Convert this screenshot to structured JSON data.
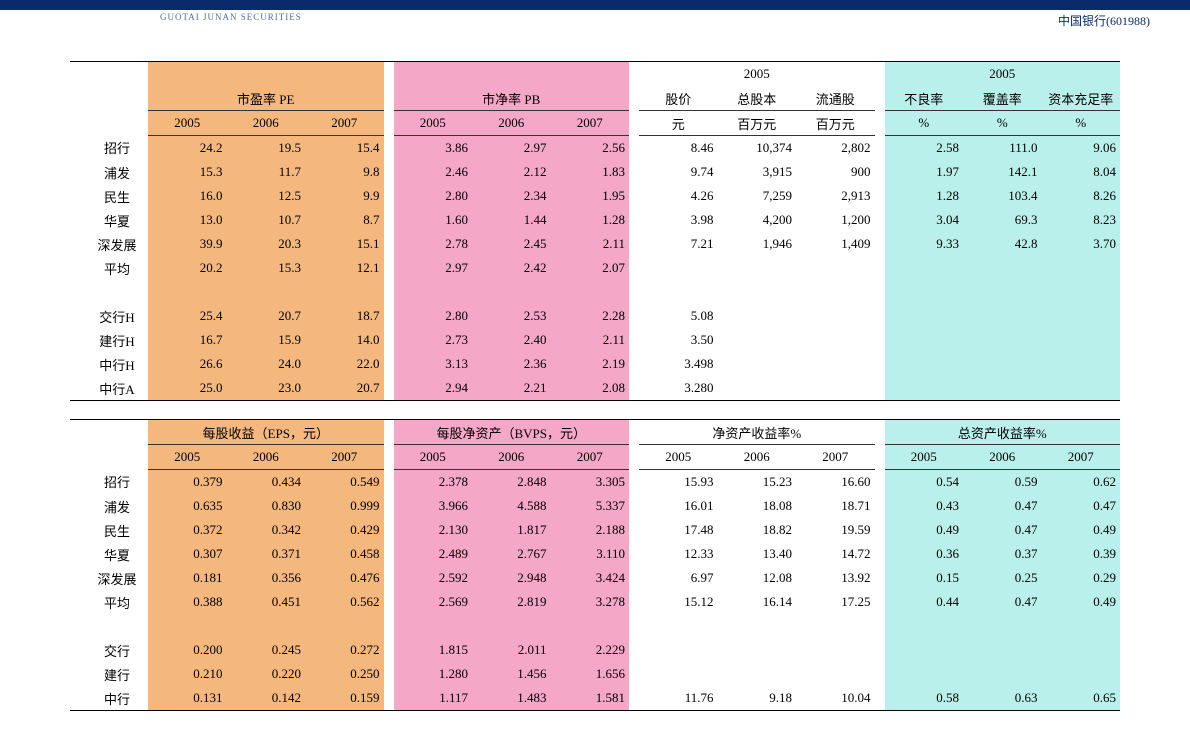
{
  "header": {
    "company_label": "中国银行",
    "stock_code": "(601988)",
    "logo_text": "GUOTAI JUNAN SECURITIES"
  },
  "colors": {
    "orange": "#f4b77e",
    "pink": "#f4a7c6",
    "cyan": "#baf0ec",
    "navy": "#0a2a6b",
    "rule": "#333333"
  },
  "table1": {
    "sections": {
      "pe": {
        "title": "市盈率 PE",
        "years": [
          "2005",
          "2006",
          "2007"
        ]
      },
      "pb": {
        "title": "市净率 PB",
        "years": [
          "2005",
          "2006",
          "2007"
        ]
      },
      "price": {
        "year": "2005",
        "cols": [
          "股价",
          "总股本",
          "流通股"
        ],
        "units": [
          "元",
          "百万元",
          "百万元"
        ]
      },
      "quality": {
        "year": "2005",
        "cols": [
          "不良率",
          "覆盖率",
          "资本充足率"
        ],
        "units": [
          "%",
          "%",
          "%"
        ]
      }
    },
    "rows": [
      {
        "label": "招行",
        "pe": [
          "24.2",
          "19.5",
          "15.4"
        ],
        "pb": [
          "3.86",
          "2.97",
          "2.56"
        ],
        "price": [
          "8.46",
          "10,374",
          "2,802"
        ],
        "q": [
          "2.58",
          "111.0",
          "9.06"
        ]
      },
      {
        "label": "浦发",
        "pe": [
          "15.3",
          "11.7",
          "9.8"
        ],
        "pb": [
          "2.46",
          "2.12",
          "1.83"
        ],
        "price": [
          "9.74",
          "3,915",
          "900"
        ],
        "q": [
          "1.97",
          "142.1",
          "8.04"
        ]
      },
      {
        "label": "民生",
        "pe": [
          "16.0",
          "12.5",
          "9.9"
        ],
        "pb": [
          "2.80",
          "2.34",
          "1.95"
        ],
        "price": [
          "4.26",
          "7,259",
          "2,913"
        ],
        "q": [
          "1.28",
          "103.4",
          "8.26"
        ]
      },
      {
        "label": "华夏",
        "pe": [
          "13.0",
          "10.7",
          "8.7"
        ],
        "pb": [
          "1.60",
          "1.44",
          "1.28"
        ],
        "price": [
          "3.98",
          "4,200",
          "1,200"
        ],
        "q": [
          "3.04",
          "69.3",
          "8.23"
        ]
      },
      {
        "label": "深发展",
        "pe": [
          "39.9",
          "20.3",
          "15.1"
        ],
        "pb": [
          "2.78",
          "2.45",
          "2.11"
        ],
        "price": [
          "7.21",
          "1,946",
          "1,409"
        ],
        "q": [
          "9.33",
          "42.8",
          "3.70"
        ]
      },
      {
        "label": "平均",
        "pe": [
          "20.2",
          "15.3",
          "12.1"
        ],
        "pb": [
          "2.97",
          "2.42",
          "2.07"
        ],
        "price": [
          "",
          "",
          ""
        ],
        "q": [
          "",
          "",
          ""
        ]
      },
      {
        "label": "",
        "pe": [
          "",
          "",
          ""
        ],
        "pb": [
          "",
          "",
          ""
        ],
        "price": [
          "",
          "",
          ""
        ],
        "q": [
          "",
          "",
          ""
        ]
      },
      {
        "label": "交行H",
        "pe": [
          "25.4",
          "20.7",
          "18.7"
        ],
        "pb": [
          "2.80",
          "2.53",
          "2.28"
        ],
        "price": [
          "5.08",
          "",
          ""
        ],
        "q": [
          "",
          "",
          ""
        ]
      },
      {
        "label": "建行H",
        "pe": [
          "16.7",
          "15.9",
          "14.0"
        ],
        "pb": [
          "2.73",
          "2.40",
          "2.11"
        ],
        "price": [
          "3.50",
          "",
          ""
        ],
        "q": [
          "",
          "",
          ""
        ]
      },
      {
        "label": "中行H",
        "pe": [
          "26.6",
          "24.0",
          "22.0"
        ],
        "pb": [
          "3.13",
          "2.36",
          "2.19"
        ],
        "price": [
          "3.498",
          "",
          ""
        ],
        "q": [
          "",
          "",
          ""
        ]
      },
      {
        "label": "中行A",
        "pe": [
          "25.0",
          "23.0",
          "20.7"
        ],
        "pb": [
          "2.94",
          "2.21",
          "2.08"
        ],
        "price": [
          "3.280",
          "",
          ""
        ],
        "q": [
          "",
          "",
          ""
        ]
      }
    ]
  },
  "table2": {
    "sections": {
      "eps": {
        "title": "每股收益（EPS，元）",
        "years": [
          "2005",
          "2006",
          "2007"
        ]
      },
      "bvps": {
        "title": "每股净资产（BVPS，元）",
        "years": [
          "2005",
          "2006",
          "2007"
        ]
      },
      "roe": {
        "title": "净资产收益率%",
        "years": [
          "2005",
          "2006",
          "2007"
        ]
      },
      "roa": {
        "title": "总资产收益率%",
        "years": [
          "2005",
          "2006",
          "2007"
        ]
      }
    },
    "rows": [
      {
        "label": "招行",
        "eps": [
          "0.379",
          "0.434",
          "0.549"
        ],
        "bvps": [
          "2.378",
          "2.848",
          "3.305"
        ],
        "roe": [
          "15.93",
          "15.23",
          "16.60"
        ],
        "roa": [
          "0.54",
          "0.59",
          "0.62"
        ]
      },
      {
        "label": "浦发",
        "eps": [
          "0.635",
          "0.830",
          "0.999"
        ],
        "bvps": [
          "3.966",
          "4.588",
          "5.337"
        ],
        "roe": [
          "16.01",
          "18.08",
          "18.71"
        ],
        "roa": [
          "0.43",
          "0.47",
          "0.47"
        ]
      },
      {
        "label": "民生",
        "eps": [
          "0.372",
          "0.342",
          "0.429"
        ],
        "bvps": [
          "2.130",
          "1.817",
          "2.188"
        ],
        "roe": [
          "17.48",
          "18.82",
          "19.59"
        ],
        "roa": [
          "0.49",
          "0.47",
          "0.49"
        ]
      },
      {
        "label": "华夏",
        "eps": [
          "0.307",
          "0.371",
          "0.458"
        ],
        "bvps": [
          "2.489",
          "2.767",
          "3.110"
        ],
        "roe": [
          "12.33",
          "13.40",
          "14.72"
        ],
        "roa": [
          "0.36",
          "0.37",
          "0.39"
        ]
      },
      {
        "label": "深发展",
        "eps": [
          "0.181",
          "0.356",
          "0.476"
        ],
        "bvps": [
          "2.592",
          "2.948",
          "3.424"
        ],
        "roe": [
          "6.97",
          "12.08",
          "13.92"
        ],
        "roa": [
          "0.15",
          "0.25",
          "0.29"
        ]
      },
      {
        "label": "平均",
        "eps": [
          "0.388",
          "0.451",
          "0.562"
        ],
        "bvps": [
          "2.569",
          "2.819",
          "3.278"
        ],
        "roe": [
          "15.12",
          "16.14",
          "17.25"
        ],
        "roa": [
          "0.44",
          "0.47",
          "0.49"
        ]
      },
      {
        "label": "",
        "eps": [
          "",
          "",
          ""
        ],
        "bvps": [
          "",
          "",
          ""
        ],
        "roe": [
          "",
          "",
          ""
        ],
        "roa": [
          "",
          "",
          ""
        ]
      },
      {
        "label": "交行",
        "eps": [
          "0.200",
          "0.245",
          "0.272"
        ],
        "bvps": [
          "1.815",
          "2.011",
          "2.229"
        ],
        "roe": [
          "",
          "",
          ""
        ],
        "roa": [
          "",
          "",
          ""
        ]
      },
      {
        "label": "建行",
        "eps": [
          "0.210",
          "0.220",
          "0.250"
        ],
        "bvps": [
          "1.280",
          "1.456",
          "1.656"
        ],
        "roe": [
          "",
          "",
          ""
        ],
        "roa": [
          "",
          "",
          ""
        ]
      },
      {
        "label": "中行",
        "eps": [
          "0.131",
          "0.142",
          "0.159"
        ],
        "bvps": [
          "1.117",
          "1.483",
          "1.581"
        ],
        "roe": [
          "11.76",
          "9.18",
          "10.04"
        ],
        "roa": [
          "0.58",
          "0.63",
          "0.65"
        ]
      }
    ]
  }
}
